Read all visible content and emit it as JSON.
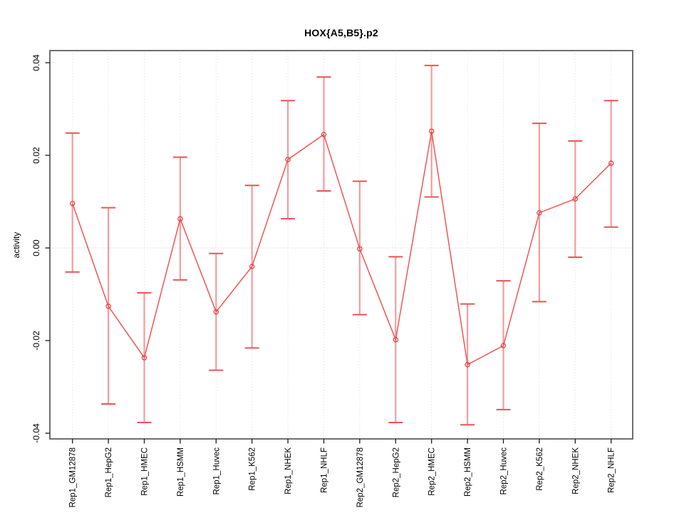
{
  "chart_data": {
    "type": "line",
    "title": "HOX{A5,B5}.p2",
    "xlabel": "",
    "ylabel": "activity",
    "ylim": [
      -0.042,
      0.0426
    ],
    "yticks": [
      0.04,
      0.02,
      0.0,
      -0.02,
      -0.04
    ],
    "ytick_labels": [
      "0.04",
      "0.02",
      "0.00",
      "-0.02",
      "-0.04"
    ],
    "grid": "vertical dotted gridline at each category; dotted horizontal line at zero; no legend",
    "legend_position": "none",
    "marker": "open-circle",
    "categories": [
      "Rep1_GM12878",
      "Rep1_HepG2",
      "Rep1_HMEC",
      "Rep1_HSMM",
      "Rep1_Huvec",
      "Rep1_K562",
      "Rep1_NHEK",
      "Rep1_NHLF",
      "Rep2_GM12878",
      "Rep2_HepG2",
      "Rep2_HMEC",
      "Rep2_HSMM",
      "Rep2_Huvec",
      "Rep2_K562",
      "Rep2_NHEK",
      "Rep2_NHLF"
    ],
    "series": [
      {
        "name": "activity",
        "values": [
          0.0096,
          -0.0126,
          -0.0237,
          0.0063,
          -0.0138,
          -0.004,
          0.0191,
          0.0245,
          -0.0002,
          -0.0198,
          0.0252,
          -0.0252,
          -0.0211,
          0.0076,
          0.0106,
          0.0183
        ],
        "error_high": [
          0.0248,
          0.0087,
          -0.0097,
          0.0196,
          -0.0012,
          0.0135,
          0.0318,
          0.0369,
          0.0144,
          -0.0019,
          0.0394,
          -0.0121,
          -0.0071,
          0.0269,
          0.0231,
          0.0318
        ],
        "error_low": [
          -0.0052,
          -0.0337,
          -0.0377,
          -0.0069,
          -0.0264,
          -0.0216,
          0.0063,
          0.0123,
          -0.0144,
          -0.0377,
          0.011,
          -0.0382,
          -0.0349,
          -0.0116,
          -0.002,
          0.0045
        ]
      }
    ],
    "colors": {
      "series_line": "#f15555",
      "error_bar_line": "#f59c9c",
      "error_bar_cap": "#e95555",
      "marker_stroke": "#e14747",
      "grid_line": "#dcdcdc",
      "zero_line": "#c9c9c9",
      "frame": "#6f6f6f",
      "tick": "#1a1a1a",
      "text": "#000000"
    }
  }
}
